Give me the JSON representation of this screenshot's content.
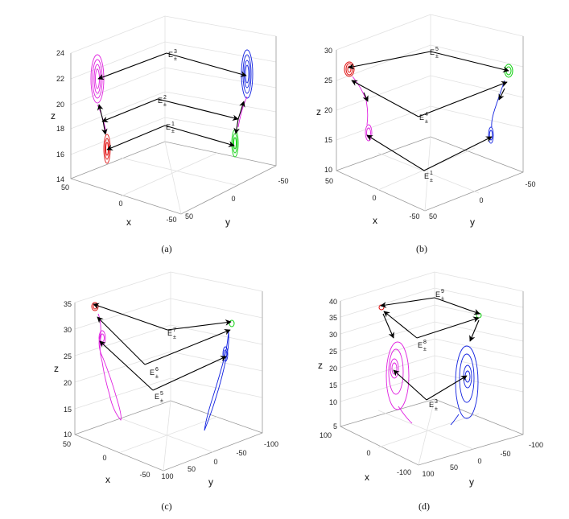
{
  "figure": {
    "panels": [
      {
        "id": "a",
        "caption": "(a)",
        "z_ticks": [
          "24",
          "22",
          "20",
          "18",
          "16",
          "14"
        ],
        "x_ticks": [
          "50",
          "0",
          "-50"
        ],
        "y_ticks": [
          "-50",
          "0",
          "50"
        ],
        "axis_labels": {
          "x": "x",
          "y": "y",
          "z": "z"
        },
        "equilibria": [
          {
            "base": "E",
            "sup": "3",
            "sub": "±"
          },
          {
            "base": "E",
            "sup": "2",
            "sub": "±"
          },
          {
            "base": "E",
            "sup": "1",
            "sub": "±"
          }
        ]
      },
      {
        "id": "b",
        "caption": "(b)",
        "z_ticks": [
          "30",
          "25",
          "20",
          "15",
          "10"
        ],
        "x_ticks": [
          "50",
          "0",
          "-50"
        ],
        "y_ticks": [
          "-50",
          "0",
          "50"
        ],
        "axis_labels": {
          "x": "x",
          "y": "y",
          "z": "z"
        },
        "equilibria": [
          {
            "base": "E",
            "sup": "5",
            "sub": "±"
          },
          {
            "base": "E",
            "sup": "4",
            "sub": "±"
          },
          {
            "base": "E",
            "sup": "1",
            "sub": "±"
          }
        ]
      },
      {
        "id": "c",
        "caption": "(c)",
        "z_ticks": [
          "35",
          "30",
          "25",
          "20",
          "15",
          "10"
        ],
        "x_ticks": [
          "50",
          "0",
          "-50"
        ],
        "y_ticks": [
          "-100",
          "-50",
          "0",
          "50",
          "100"
        ],
        "axis_labels": {
          "x": "x",
          "y": "y",
          "z": "z"
        },
        "equilibria": [
          {
            "base": "E",
            "sup": "7",
            "sub": "±"
          },
          {
            "base": "E",
            "sup": "6",
            "sub": "±"
          },
          {
            "base": "E",
            "sup": "5",
            "sub": "±"
          }
        ]
      },
      {
        "id": "d",
        "caption": "(d)",
        "z_ticks": [
          "40",
          "35",
          "30",
          "25",
          "20",
          "15",
          "10",
          "5"
        ],
        "x_ticks": [
          "100",
          "0",
          "-100"
        ],
        "y_ticks": [
          "-100",
          "-50",
          "0",
          "50",
          "100"
        ],
        "axis_labels": {
          "x": "x",
          "y": "y",
          "z": "z"
        },
        "equilibria": [
          {
            "base": "E",
            "sup": "9",
            "sub": "±"
          },
          {
            "base": "E",
            "sup": "8",
            "sub": "±"
          },
          {
            "base": "E",
            "sup": "3",
            "sub": "±"
          }
        ]
      }
    ],
    "colors": {
      "magenta": "#e020e0",
      "red": "#e01010",
      "blue": "#1020e0",
      "green": "#10d010",
      "black": "#000000"
    }
  }
}
